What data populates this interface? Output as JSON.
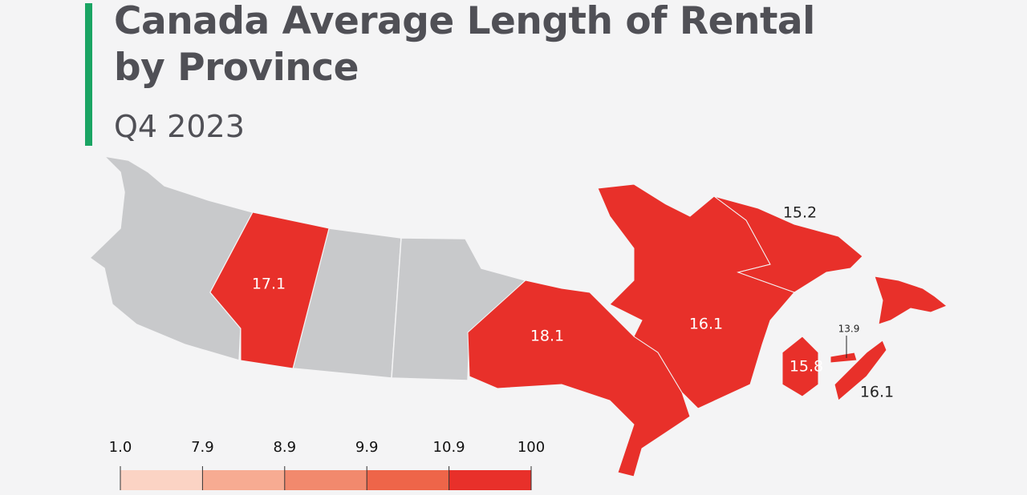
{
  "header": {
    "title": "Canada Average Length of Rental by Province",
    "subtitle": "Q4 2023"
  },
  "map": {
    "regions": [
      {
        "value": 17.1
      },
      {
        "value": 18.1
      },
      {
        "value": 16.1
      },
      {
        "value": 15.2
      },
      {
        "value": 15.8
      },
      {
        "value": 13.9
      },
      {
        "value": 16.1
      }
    ]
  },
  "legend": {
    "ticks": [
      {
        "value": 1,
        "label": "1.0"
      },
      7.9,
      8.9,
      9.9,
      10.9,
      100
    ],
    "colors": [
      "#fbd3c4",
      "#f7ab92",
      "#f2896d",
      "#ee6549",
      "#e8302a"
    ]
  }
}
